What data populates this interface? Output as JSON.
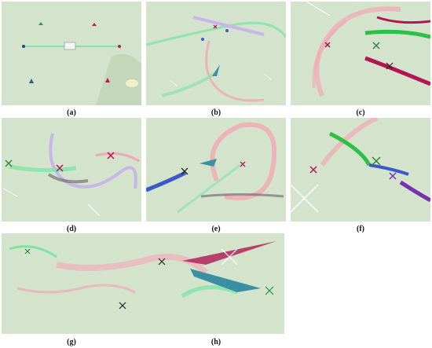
{
  "figure": {
    "captions": {
      "a": "(a)",
      "b": "(b)",
      "c": "(c)",
      "d": "(d)",
      "e": "(e)",
      "f": "(f)",
      "g": "(g)",
      "h": "(h)"
    }
  },
  "colors": {
    "terrain": "#cfe0c9",
    "ribbon_pink": "#f3a6b4",
    "ribbon_green": "#7fe3a6",
    "ribbon_blue": "#3d59c9",
    "ribbon_magenta": "#b31552",
    "ribbon_lilac": "#c9b6e8",
    "arrow_teal": "#3a8fa5"
  }
}
